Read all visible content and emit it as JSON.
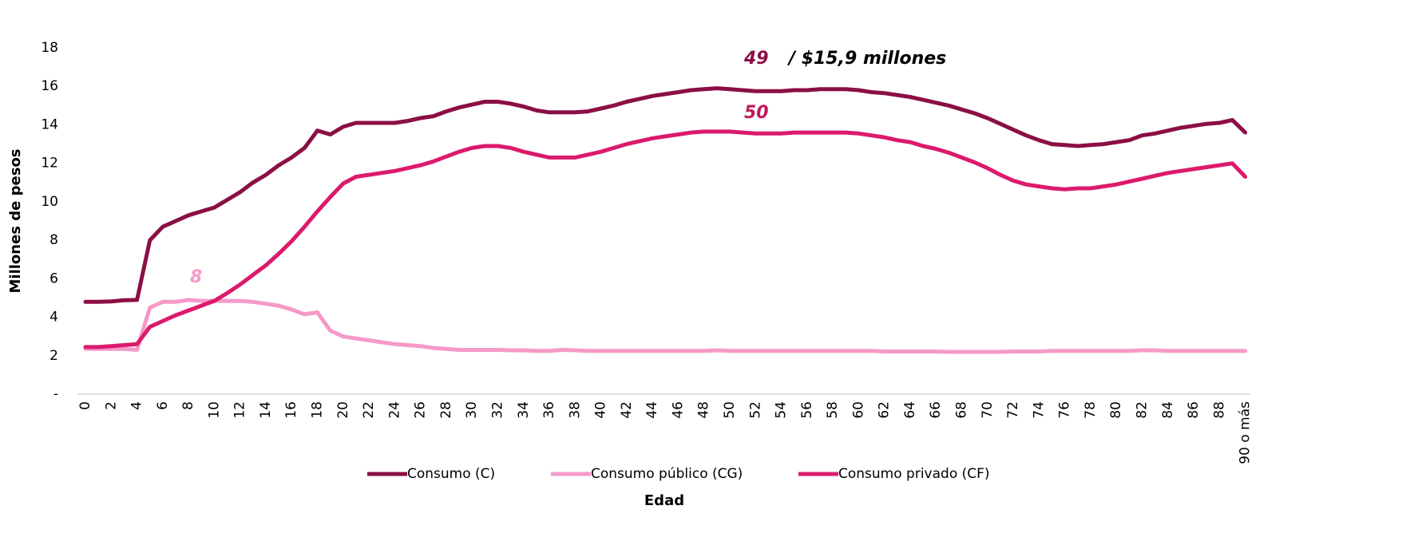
{
  "chart_data": {
    "type": "line",
    "ylabel": "Millones de pesos",
    "xlabel": "Edad",
    "categories": [
      "0",
      null,
      "2",
      null,
      "4",
      null,
      "6",
      null,
      "8",
      null,
      "10",
      null,
      "12",
      null,
      "14",
      null,
      "16",
      null,
      "18",
      null,
      "20",
      null,
      "22",
      null,
      "24",
      null,
      "26",
      null,
      "28",
      null,
      "30",
      null,
      "32",
      null,
      "34",
      null,
      "36",
      null,
      "38",
      null,
      "40",
      null,
      "42",
      null,
      "44",
      null,
      "46",
      null,
      "48",
      null,
      "50",
      null,
      "52",
      null,
      "54",
      null,
      "56",
      null,
      "58",
      null,
      "60",
      null,
      "62",
      null,
      "64",
      null,
      "66",
      null,
      "68",
      null,
      "70",
      null,
      "72",
      null,
      "74",
      null,
      "76",
      null,
      "78",
      null,
      "80",
      null,
      "82",
      null,
      "84",
      null,
      "86",
      null,
      "88",
      null,
      "90 o más"
    ],
    "series": [
      {
        "name": "Consumo (C)",
        "color": "#8b0f45",
        "values": [
          4.8,
          4.8,
          4.82,
          4.88,
          4.9,
          8.0,
          8.7,
          9.0,
          9.3,
          9.5,
          9.7,
          10.1,
          10.5,
          11.0,
          11.4,
          11.9,
          12.3,
          12.8,
          13.7,
          13.5,
          13.9,
          14.1,
          14.1,
          14.1,
          14.1,
          14.2,
          14.35,
          14.45,
          14.7,
          14.9,
          15.05,
          15.2,
          15.2,
          15.1,
          14.95,
          14.75,
          14.65,
          14.65,
          14.65,
          14.7,
          14.85,
          15.0,
          15.2,
          15.35,
          15.5,
          15.6,
          15.7,
          15.8,
          15.85,
          15.9,
          15.85,
          15.8,
          15.75,
          15.75,
          15.75,
          15.8,
          15.8,
          15.85,
          15.85,
          15.85,
          15.8,
          15.7,
          15.65,
          15.55,
          15.45,
          15.3,
          15.15,
          15.0,
          14.8,
          14.6,
          14.35,
          14.05,
          13.75,
          13.45,
          13.2,
          13.0,
          12.95,
          12.9,
          12.95,
          13.0,
          13.1,
          13.2,
          13.45,
          13.55,
          13.7,
          13.85,
          13.95,
          14.05,
          14.1,
          14.25,
          13.6
        ]
      },
      {
        "name": "Consumo público (CG)",
        "color": "#f59ac8",
        "values": [
          2.35,
          2.35,
          2.35,
          2.35,
          2.3,
          4.5,
          4.8,
          4.8,
          4.9,
          4.85,
          4.85,
          4.85,
          4.85,
          4.8,
          4.7,
          4.6,
          4.4,
          4.15,
          4.25,
          3.3,
          3.0,
          2.9,
          2.8,
          2.7,
          2.6,
          2.55,
          2.5,
          2.4,
          2.35,
          2.3,
          2.3,
          2.3,
          2.3,
          2.28,
          2.28,
          2.25,
          2.25,
          2.3,
          2.28,
          2.25,
          2.25,
          2.25,
          2.25,
          2.25,
          2.25,
          2.25,
          2.25,
          2.25,
          2.25,
          2.28,
          2.25,
          2.25,
          2.25,
          2.25,
          2.25,
          2.25,
          2.25,
          2.25,
          2.25,
          2.25,
          2.25,
          2.25,
          2.22,
          2.22,
          2.22,
          2.22,
          2.22,
          2.2,
          2.2,
          2.2,
          2.2,
          2.2,
          2.22,
          2.22,
          2.22,
          2.25,
          2.25,
          2.25,
          2.25,
          2.25,
          2.25,
          2.25,
          2.28,
          2.28,
          2.25,
          2.25,
          2.25,
          2.25,
          2.25,
          2.25,
          2.25
        ]
      },
      {
        "name": "Consumo privado (CF)",
        "color": "#dc1a6c",
        "values": [
          2.45,
          2.45,
          2.5,
          2.55,
          2.6,
          3.5,
          3.8,
          4.1,
          4.35,
          4.6,
          4.85,
          5.25,
          5.7,
          6.2,
          6.7,
          7.3,
          7.95,
          8.7,
          9.5,
          10.25,
          10.95,
          11.3,
          11.4,
          11.5,
          11.6,
          11.75,
          11.9,
          12.1,
          12.35,
          12.6,
          12.8,
          12.9,
          12.9,
          12.8,
          12.6,
          12.45,
          12.3,
          12.3,
          12.3,
          12.45,
          12.6,
          12.8,
          13.0,
          13.15,
          13.3,
          13.4,
          13.5,
          13.6,
          13.65,
          13.65,
          13.65,
          13.6,
          13.55,
          13.55,
          13.55,
          13.6,
          13.6,
          13.6,
          13.6,
          13.6,
          13.55,
          13.45,
          13.35,
          13.2,
          13.1,
          12.9,
          12.75,
          12.55,
          12.3,
          12.05,
          11.75,
          11.4,
          11.1,
          10.9,
          10.8,
          10.7,
          10.65,
          10.7,
          10.7,
          10.8,
          10.9,
          11.05,
          11.2,
          11.35,
          11.5,
          11.6,
          11.7,
          11.8,
          11.9,
          12.0,
          11.3
        ]
      }
    ],
    "ylim": [
      0,
      18
    ],
    "yticks": [
      {
        "value": 0,
        "label": "-"
      },
      2,
      4,
      6,
      8,
      10,
      12,
      14,
      16,
      18
    ],
    "grid": false,
    "legend": "bottom",
    "annotations": [
      {
        "text": "49",
        "color": "#8b0f45"
      },
      {
        "text": "/ $15,9 millones",
        "color": "#000000"
      },
      {
        "text": "50",
        "color": "#c2185b"
      },
      {
        "text": "8",
        "color": "#f59ac8"
      }
    ]
  }
}
